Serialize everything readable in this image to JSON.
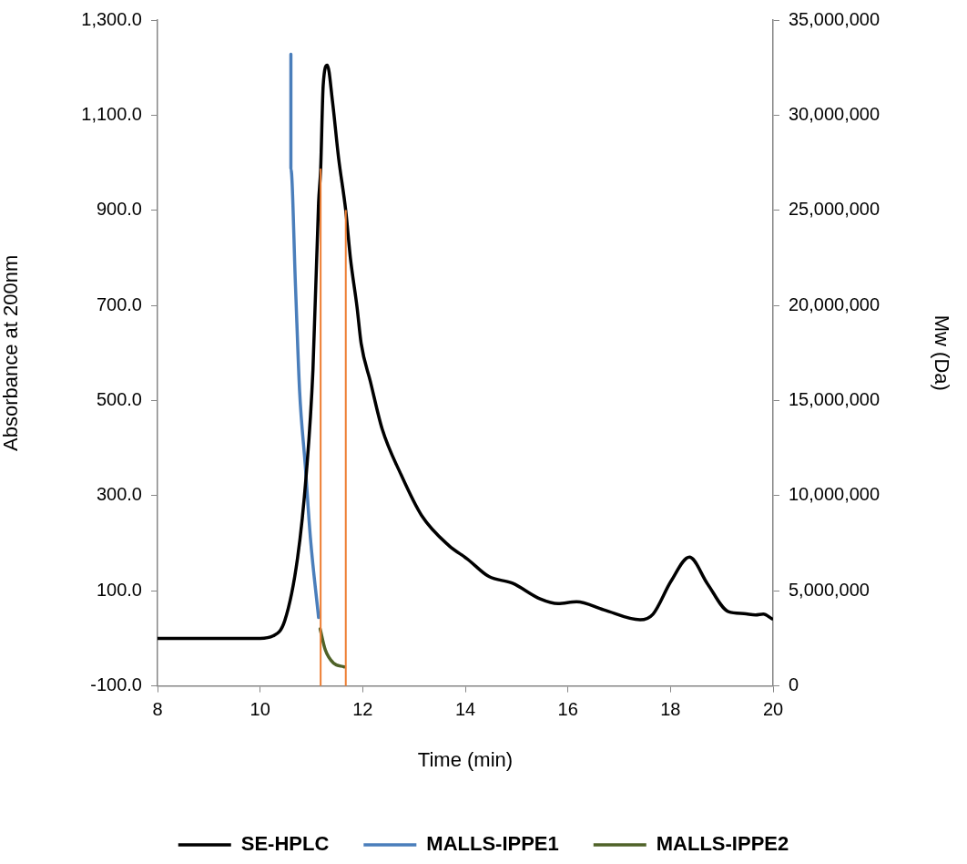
{
  "chart_data": {
    "type": "line",
    "xlabel": "Time (min)",
    "ylabel": "Absorbance at 200nm",
    "y2label": "Mw (Da)",
    "xlim": [
      8,
      20
    ],
    "xticks": [
      8,
      10,
      12,
      14,
      16,
      18,
      20
    ],
    "ylim": [
      -100,
      1300
    ],
    "yticks": [
      {
        "value": -100,
        "label": "-100.0"
      },
      {
        "value": 100,
        "label": "100.0"
      },
      {
        "value": 300,
        "label": "300.0"
      },
      {
        "value": 500,
        "label": "500.0"
      },
      {
        "value": 700,
        "label": "700.0"
      },
      {
        "value": 900,
        "label": "900.0"
      },
      {
        "value": 1100,
        "label": "1,100.0"
      },
      {
        "value": 1300,
        "label": "1,300.0"
      }
    ],
    "y2lim": [
      0,
      35000000
    ],
    "y2ticks": [
      {
        "value": 0,
        "label": "0"
      },
      {
        "value": 5000000,
        "label": "5,000,000"
      },
      {
        "value": 10000000,
        "label": "10,000,000"
      },
      {
        "value": 15000000,
        "label": "15,000,000"
      },
      {
        "value": 20000000,
        "label": "20,000,000"
      },
      {
        "value": 25000000,
        "label": "25,000,000"
      },
      {
        "value": 30000000,
        "label": "30,000,000"
      },
      {
        "value": 35000000,
        "label": "35,000,000"
      }
    ],
    "grid": false,
    "legend": "bottom",
    "marker": "none",
    "line_style": "solid",
    "series": [
      {
        "name": "SE-HPLC",
        "color": "#000000",
        "x": [
          8,
          10,
          10.25,
          10.48,
          10.73,
          10.9,
          11.03,
          11.14,
          11.18,
          11.23,
          11.31,
          11.41,
          11.53,
          11.67,
          11.76,
          11.89,
          11.97,
          12.15,
          12.38,
          12.74,
          13.15,
          13.68,
          14.04,
          14.46,
          14.92,
          15.46,
          15.81,
          16.17,
          16.7,
          17.41,
          17.66,
          18.01,
          18.37,
          18.72,
          19.13,
          19.43,
          19.66,
          19.81,
          19.98
        ],
        "values": [
          0,
          0,
          5,
          37,
          169,
          345,
          564,
          916,
          986,
          1163,
          1205,
          1130,
          1010,
          899,
          800,
          696,
          620,
          540,
          440,
          346,
          258,
          195,
          167,
          130,
          116,
          83,
          73,
          77,
          60,
          39,
          51,
          120,
          171,
          115,
          56,
          52,
          49,
          51,
          41
        ]
      },
      {
        "name": "MALLS-IPPE1",
        "color": "#4a7ebb",
        "axis": "y2",
        "x": [
          10.6,
          10.6,
          10.69,
          10.77,
          10.88,
          10.98,
          11.14
        ],
        "values": [
          33200000,
          27200000,
          21000000,
          15500000,
          11600000,
          7800000,
          3600000
        ]
      },
      {
        "name": "MALLS-IPPE2",
        "color": "#4f6228",
        "axis": "y2",
        "x": [
          11.17,
          11.27,
          11.43,
          11.64
        ],
        "values": [
          3000000,
          1900000,
          1200000,
          1000000
        ]
      },
      {
        "color": "#ed7d31",
        "x": [
          11.18,
          11.18
        ],
        "values": [
          -100,
          986
        ]
      },
      {
        "color": "#ed7d31",
        "x": [
          11.67,
          11.67
        ],
        "values": [
          -100,
          899
        ]
      }
    ]
  }
}
